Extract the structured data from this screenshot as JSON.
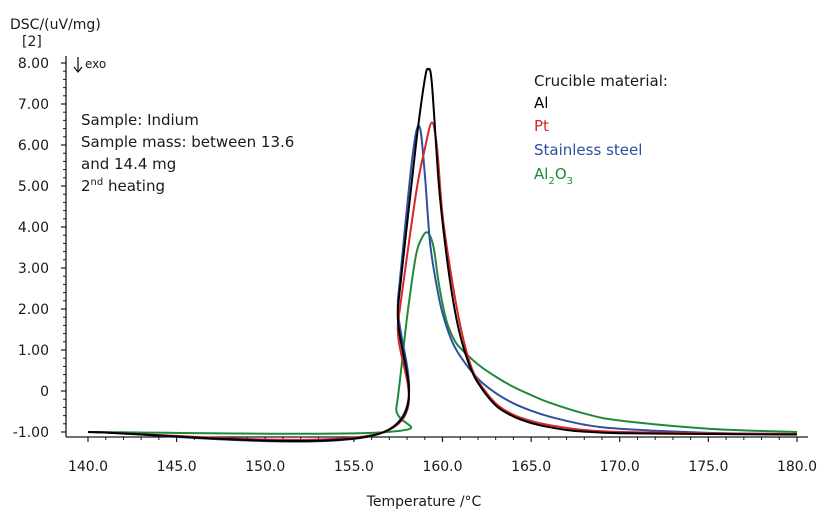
{
  "chart_data": {
    "type": "line",
    "ylabel_line1": "DSC/(uV/mg)",
    "ylabel_line2": "[2]",
    "xlabel": "Temperature /°C",
    "exo_label": "exo",
    "xlim": [
      140,
      180.5
    ],
    "ylim": [
      -1.1,
      8.0
    ],
    "x_ticks": [
      "140.0",
      "145.0",
      "150.0",
      "155.0",
      "160.0",
      "165.0",
      "170.0",
      "175.0",
      "180.0"
    ],
    "y_ticks": [
      "8.00",
      "7.00",
      "6.00",
      "5.00",
      "4.00",
      "3.00",
      "2.00",
      "1.00",
      "0",
      "-1.00"
    ],
    "sample_info": {
      "line1": "Sample: Indium",
      "line2": "Sample mass: between 13.6",
      "line3": "and 14.4 mg",
      "heating_num": "2",
      "heating_sup": "nd",
      "heating_text": " heating"
    },
    "legend": {
      "title": "Crucible material:",
      "al_label": "Al",
      "pt_label": "Pt",
      "ss_label": "Stainless steel",
      "al2o3_parts": [
        "Al",
        "2",
        "O",
        "3"
      ]
    },
    "series": [
      {
        "name": "Al",
        "color": "#000000",
        "x": [
          140,
          156.7,
          157.5,
          158.5,
          159.0,
          159.2,
          159.4,
          159.8,
          160.2,
          160.6,
          161.0,
          161.5,
          162.0,
          163.0,
          164.0,
          165.0,
          166.0,
          167.0,
          168.0,
          170.0,
          175.0,
          180.0
        ],
        "y": [
          -1.0,
          -1.0,
          2.1,
          6.0,
          7.6,
          7.85,
          7.5,
          5.0,
          3.4,
          2.2,
          1.35,
          0.65,
          0.2,
          -0.35,
          -0.62,
          -0.78,
          -0.88,
          -0.95,
          -0.99,
          -1.03,
          -1.05,
          -1.06
        ]
      },
      {
        "name": "Pt",
        "color": "#d62728",
        "x": [
          140,
          156.7,
          157.5,
          158.5,
          159.0,
          159.4,
          159.7,
          160.0,
          160.5,
          161.0,
          161.5,
          162.0,
          163.0,
          164.0,
          165.0,
          166.0,
          167.0,
          168.0,
          170.0,
          175.0,
          180.0
        ],
        "y": [
          -1.0,
          -1.0,
          1.7,
          4.8,
          5.9,
          6.55,
          5.9,
          4.3,
          2.8,
          1.6,
          0.75,
          0.25,
          -0.3,
          -0.58,
          -0.73,
          -0.83,
          -0.9,
          -0.95,
          -1.0,
          -1.03,
          -1.05
        ]
      },
      {
        "name": "Stainless steel",
        "color": "#2e4fa2",
        "x": [
          140,
          156.7,
          157.5,
          158.3,
          158.7,
          159.0,
          159.3,
          159.7,
          160.0,
          160.5,
          161.0,
          162.0,
          163.0,
          164.0,
          165.0,
          166.0,
          168.0,
          170.0,
          175.0,
          180.0
        ],
        "y": [
          -1.0,
          -1.0,
          2.3,
          5.7,
          6.45,
          5.3,
          3.6,
          2.5,
          1.9,
          1.25,
          0.85,
          0.3,
          -0.05,
          -0.3,
          -0.48,
          -0.62,
          -0.82,
          -0.92,
          -1.02,
          -1.05
        ]
      },
      {
        "name": "Al2O3",
        "color": "#1e8a3a",
        "x": [
          140,
          156.9,
          157.4,
          158.0,
          158.5,
          158.9,
          159.2,
          159.5,
          159.8,
          160.2,
          160.6,
          161.0,
          162.0,
          163.0,
          164.0,
          165.0,
          166.0,
          168.0,
          170.0,
          175.0,
          180.0
        ],
        "y": [
          -1.0,
          -1.0,
          -0.4,
          1.8,
          3.3,
          3.78,
          3.85,
          3.5,
          2.6,
          1.75,
          1.3,
          1.05,
          0.65,
          0.35,
          0.1,
          -0.1,
          -0.28,
          -0.55,
          -0.72,
          -0.92,
          -1.0
        ]
      }
    ]
  }
}
